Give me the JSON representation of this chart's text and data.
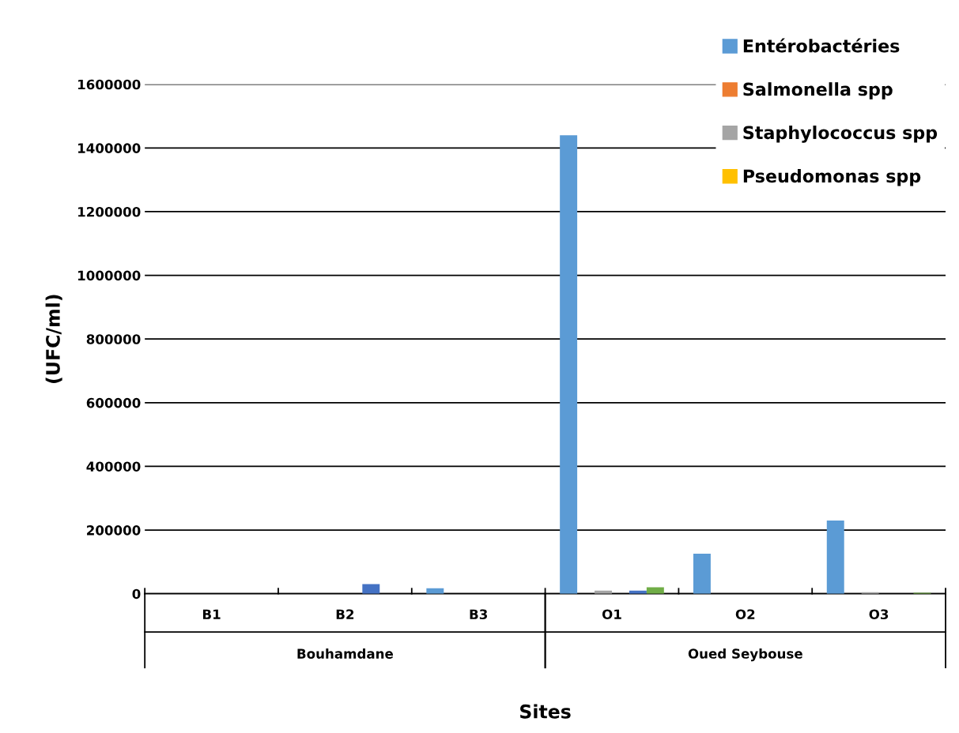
{
  "chart_data": {
    "type": "bar",
    "xlabel": "Sites",
    "ylabel": "(UFC/ml)",
    "categories": [
      "B1",
      "B2",
      "B3",
      "O1",
      "O2",
      "O3"
    ],
    "series": [
      {
        "name": "Entérobactéries",
        "color": "#5b9bd5",
        "values": [
          0,
          0,
          17000,
          1440000,
          126000,
          230000
        ]
      },
      {
        "name": "Salmonella spp",
        "color": "#ed7d31",
        "values": [
          0,
          0,
          0,
          0,
          0,
          0
        ]
      },
      {
        "name": "Staphylococcus spp",
        "color": "#a5a5a5",
        "values": [
          0,
          0,
          0,
          10000,
          0,
          5000
        ]
      },
      {
        "name": "Pseudomonas spp",
        "color": "#ffc000",
        "values": [
          0,
          0,
          0,
          0,
          0,
          0
        ]
      },
      {
        "color": "#4472c4",
        "values": [
          0,
          30000,
          0,
          10000,
          0,
          0
        ]
      },
      {
        "color": "#70ad47",
        "values": [
          0,
          0,
          0,
          20000,
          0,
          3000
        ]
      }
    ],
    "ylim": [
      0,
      1600000
    ],
    "yticks": [
      0,
      200000,
      400000,
      600000,
      800000,
      1000000,
      1200000,
      1400000,
      1600000
    ],
    "grid": "y",
    "legend": "top right",
    "annotations": [
      "Bouhamdane",
      "Oued Seybouse"
    ]
  }
}
